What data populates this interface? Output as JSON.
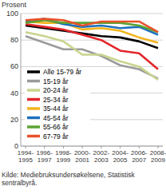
{
  "chart_data": {
    "type": "line",
    "y_label": "Prosent",
    "categories": [
      "1994-1995",
      "1996-1997",
      "1998-1999",
      "2000-2001",
      "2002-2003",
      "2004-2005",
      "2006-2007",
      "2008-2009"
    ],
    "series": [
      {
        "name": "Alle 15-79 år",
        "color": "#000000",
        "values": [
          91,
          89,
          87,
          85,
          83,
          82,
          79,
          74
        ]
      },
      {
        "name": "15-19 år",
        "color": "#9a9a9a",
        "values": [
          83,
          78,
          73,
          73,
          68,
          61,
          58,
          51
        ]
      },
      {
        "name": "20-24 år",
        "color": "#c9d48e",
        "values": [
          86,
          83,
          79,
          69,
          69,
          64,
          60,
          50
        ]
      },
      {
        "name": "25-34 år",
        "color": "#e3262b",
        "values": [
          92,
          90,
          88,
          84,
          80,
          72,
          70,
          58
        ]
      },
      {
        "name": "35-44 år",
        "color": "#f2b51e",
        "values": [
          94,
          93,
          93,
          88,
          89,
          87,
          82,
          78
        ]
      },
      {
        "name": "45-54 år",
        "color": "#1f71bd",
        "values": [
          94,
          96,
          92,
          90,
          91,
          89,
          90,
          84
        ]
      },
      {
        "name": "55-66 år",
        "color": "#5ba433",
        "values": [
          93,
          95,
          93,
          93,
          93,
          93,
          91,
          86
        ]
      },
      {
        "name": "67-79 år",
        "color": "#e8512c",
        "values": [
          95,
          96,
          95,
          91,
          94,
          94,
          94,
          86
        ]
      }
    ],
    "ylim": [
      0,
      100
    ],
    "yticks": [
      0,
      20,
      40,
      60,
      80,
      100
    ],
    "grid": true,
    "legend": "lower left",
    "source": [
      "Kilde: Mediebruksundersøkelsene, Statistisk",
      "sentralbyrå."
    ]
  }
}
